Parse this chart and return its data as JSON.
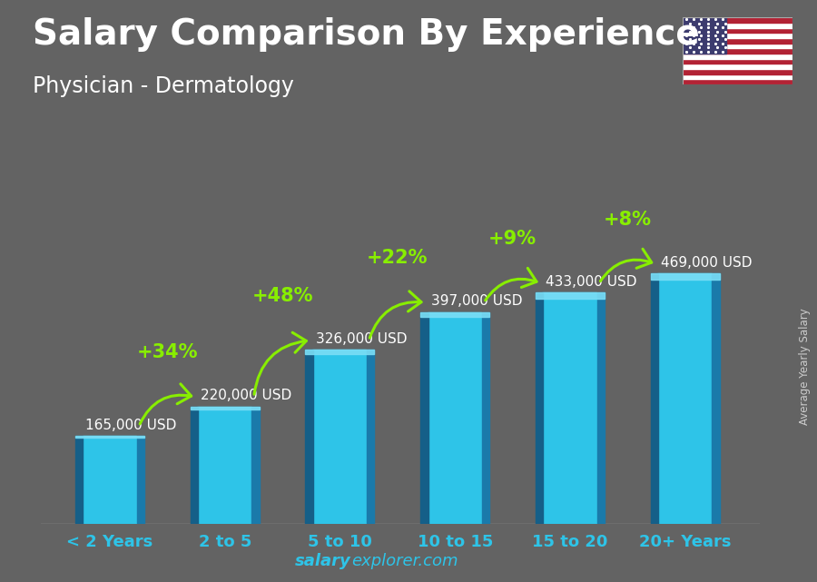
{
  "title": "Salary Comparison By Experience",
  "subtitle": "Physician - Dermatology",
  "categories": [
    "< 2 Years",
    "2 to 5",
    "5 to 10",
    "10 to 15",
    "15 to 20",
    "20+ Years"
  ],
  "values": [
    165000,
    220000,
    326000,
    397000,
    433000,
    469000
  ],
  "value_labels": [
    "165,000 USD",
    "220,000 USD",
    "326,000 USD",
    "397,000 USD",
    "433,000 USD",
    "469,000 USD"
  ],
  "pct_changes": [
    "+34%",
    "+48%",
    "+22%",
    "+9%",
    "+8%"
  ],
  "bar_color_main": "#2ec4e8",
  "bar_color_dark": "#1a7aaa",
  "bar_color_darker": "#155f88",
  "bar_color_light": "#7addf5",
  "background_color": "#636363",
  "title_color": "#ffffff",
  "subtitle_color": "#ffffff",
  "value_label_color": "#ffffff",
  "pct_color": "#88ee00",
  "xlabel_color": "#2ec4e8",
  "ylabel_text": "Average Yearly Salary",
  "ylabel_color": "#cccccc",
  "watermark_bold": "salary",
  "watermark_rest": "explorer.com",
  "watermark_color": "#2ec4e8",
  "ylim": [
    0,
    600000
  ],
  "title_fontsize": 28,
  "subtitle_fontsize": 17,
  "value_label_fontsize": 11,
  "pct_fontsize": 15,
  "xlabel_fontsize": 13
}
